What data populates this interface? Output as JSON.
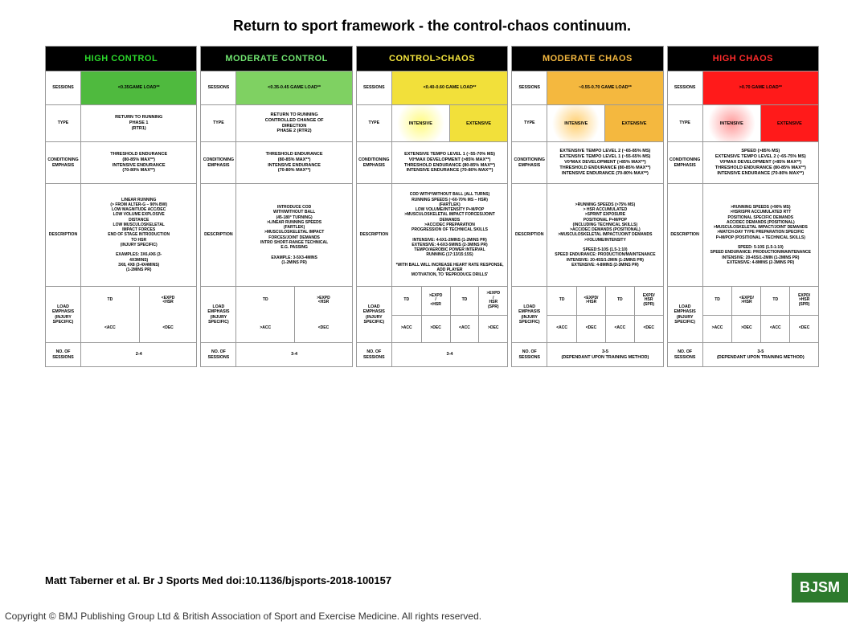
{
  "title": "Return to sport framework - the control-chaos continuum.",
  "citation": "Matt Taberner et al. Br J Sports Med doi:10.1136/bjsports-2018-100157",
  "logo": "BJSM",
  "copyright": "Copyright © BMJ Publishing Group Ltd & British Association of Sport and Exercise Medicine. All rights reserved.",
  "row_labels": {
    "sessions": "SESSIONS",
    "type": "TYPE",
    "conditioning": "CONDITIONING\nEMPHASIS",
    "description": "DESCRIPTION",
    "load": "LOAD\nEMPHASIS\n(INJURY SPECIFIC)",
    "nos": "NO. OF SESSIONS"
  },
  "columns": [
    {
      "title": "HIGH CONTROL",
      "title_color": "#2bd82b",
      "sessions_bg": "#4fba3e",
      "sessions": "<0.35GAME LOAD**",
      "type": "RETURN TO RUNNING\nPHASE 1\n(RTR1)",
      "type_split": false,
      "type_bg": [
        "#ffffff"
      ],
      "conditioning": "THRESHOLD ENDURANCE\n(80-85% MAX**)\nINTENSIVE ENDURANCE\n(70-80% MAX**)",
      "description": "LINEAR RUNNING\n(> FROM ALTER-G – 90% BW)\nLOW MAGNITUDE ACC/DEC\nLOW VOLUME EXPLOSIVE\nDISTANCE\nLOW MUSCULOSKELETAL\nIMPACT FORCES\nEND OF STAGE INTRODUCTION\nTO HSR\n(INJURY SPECIFIC)\n\nEXAMPLES: 3X6,4X6 (3-\n4X3MINS)\n3X8, 4X8 (3-4X4MINS)\n(1-2MINS PR)",
      "load_cols": 2,
      "load": [
        "TD",
        "<EXPD\n<HSR",
        "<ACC",
        "<DEC"
      ],
      "nos": "2-4"
    },
    {
      "title": "MODERATE CONTROL",
      "title_color": "#6fe36f",
      "sessions_bg": "#7fd162",
      "sessions": "<0.35-0.45 GAME LOAD**",
      "type": "RETURN TO RUNNING\nCONTROLLED CHANGE OF\nDIRECTION\nPHASE 2 (RTR2)",
      "type_split": false,
      "type_bg": [
        "#ffffff"
      ],
      "conditioning": "THRESHOLD ENDURANCE\n(80-85% MAX**)\nINTENSIVE ENDURANCE\n(70-80% MAX**)",
      "description": "INTRODUCE COD\nWITH/WITHOUT BALL\n(45-180° TURNING)\n>LINEAR RUNNING SPEEDS\n(FARTLEK)\n>MUSCULOSKELETAL IMPACT\nFORCES/JOINT DEMANDS\nINTRO SHORT-RANGE TECHNICAL\nE.G. PASSING\n\nEXAMPLE: 3-5X3-4MINS\n(1-2MINS PR)",
      "load_cols": 2,
      "load": [
        "TD",
        ">EXPD\n<HSR",
        ">ACC",
        "<DEC"
      ],
      "nos": "3-4"
    },
    {
      "title": "CONTROL>CHAOS",
      "title_color": "#f5e63d",
      "sessions_bg": "#f2e03a",
      "sessions": "<0.40-0.60 GAME LOAD**",
      "type_split": true,
      "type": [
        "INTENSIVE",
        "EXTENSIVE"
      ],
      "type_bg": [
        "radial-gradient(circle,#fffb80 0%,#ffffff 70%)",
        "#f2e03a"
      ],
      "conditioning": "EXTENSIVE TEMPO LEVEL 1 (~55-70% MS)\nV0²MAX DEVELOPMENT (>85% MAX**)\nTHRESHOLD ENDURANCE (80-85% MAX**)\nINTENSIVE ENDURANCE (70-80% MAX**)",
      "description": "COD WITH*/WITHOUT BALL (ALL TURNS)\nRUNNING SPEEDS (~60-70% MS – HSR)\n(FARTLEK)\nLOW VOLUME/INTENSITY P+M/POP\n>MUSCULOSKELETAL IMPACT FORCES/JOINT\nDEMANDS\n>ACC/DEC PREPARATION\nPROGRESSION OF TECHNICAL SKILLS\n\nINTENSIVE: 4-6X1-2MINS (1-2MINS PR)\nEXTENSIVE: 4-6X3-5MINS (2-3MINS PR)\nTEMPO/AEROBIC POWER INTERVAL\nRUNNING (17:13/15:15S)\n\n*WITH BALL WILL INCREASE HEART RATE RESPONSE, ADD PLAYER\nMOTIVATION, TO 'REPRODUCE DRILLS'",
      "load_cols": 4,
      "load": [
        "TD",
        ">EXPD\n/\n<HSR",
        "TD",
        ">EXPD\n/\nHSR\n(SPR)",
        ">ACC",
        ">DEC",
        "<ACC",
        ">DEC"
      ],
      "nos": "3-4"
    },
    {
      "title": "MODERATE CHAOS",
      "title_color": "#f4b83f",
      "sessions_bg": "#f4b83f",
      "sessions": "~0.55-0.70 GAME LOAD**",
      "type_split": true,
      "type": [
        "INTENSIVE",
        "EXTENSIVE"
      ],
      "type_bg": [
        "radial-gradient(circle,#ffcf70 0%,#ffffff 70%)",
        "#f4b83f"
      ],
      "conditioning": "EXTENSIVE TEMPO LEVEL 2 (~65-85% MS)\nEXTENSIVE TEMPO LEVEL 1 (~55-65% MS)\nV0²MAX DEVELOPMENT (>85% MAX**)\nTHRESHOLD ENDURANCE (80-85% MAX**)\nINTENSIVE ENDURANCE (70-80% MAX**)",
      "description": ">RUNNING SPEEDS (>75% MS)\n> HSR ACCUMULATED\n>SPRINT EXPOSURE\nPOSITIONAL P+M/POP\n(INCLUDING TECHNICAL SKILLS)\n>ACC/DEC DEMANDS (POSITIONAL)\n>MUSCULOSKELETAL IMPACT/JOINT DEMANDS\n>VOLUME/INTENSITY\n\nSPEED:5-10S (1.5-1:10)\nSPEED ENDURANCE: PRODUCTION/MAINTENANCE\nINTENSIVE: 20-45S/1-2MIN (1-2MINS PR)\nEXTENSIVE: 4-8MINS (2-3MINS PR)",
      "load_cols": 4,
      "load": [
        "TD",
        "<EXPD/\n>HSR",
        "TD",
        "EXPD/\nHSR\n(SPR)",
        "<ACC",
        "<DEC",
        "<ACC",
        "<DEC"
      ],
      "nos": "3-5\n(DEPENDANT UPON TRAINING METHOD)"
    },
    {
      "title": "HIGH CHAOS",
      "title_color": "#ff2b2b",
      "sessions_bg": "#ff1a1a",
      "sessions": ">0.70 GAME LOAD**",
      "type_split": true,
      "type": [
        "INTENSIVE",
        "EXTENSIVE"
      ],
      "type_bg": [
        "radial-gradient(circle,#ff9a9a 0%,#ffffff 70%)",
        "#ff1a1a"
      ],
      "conditioning": "SPEED (>85% MS)\nEXTENSIVE TEMPO LEVEL 2 (~65-75% MS)\nV0²MAX DEVELOPMENT (>85% MAX**)\nTHRESHOLD ENDURANCE (80-85% MAX**)\nINTENSIVE ENDURANCE (70-80% MAX**)",
      "description": ">RUNNING SPEEDS (>90% MS)\n>HSR/SPR ACCUMULATED RTT\nPOSITIONAL SPECIFIC DEMANDS\nACC/DEC DEMANDS (POSITIONAL)\n>MUSCULOSKELETAL IMPACT/JOINT DEMANDS\n>MATCH-DAY TYPE PREPARATION SPECIFIC\nP+M/POP (POSITIONAL + TECHNICAL SKILLS)\n\nSPEED: 5-10S (1.5-1:10)\nSPEED ENDURANCE: PRODUCTION/MAINTENANCE\nINTENSIVE: 20-45S/1-2MIN (1-2MINS PR)\nEXTENSIVE: 4-8MINS (2-3MINS PR)",
      "load_cols": 4,
      "load": [
        "TD",
        "<EXPD/\n>HSR",
        "TD",
        "EXPD/\n>HSR\n(SPR)",
        ">ACC",
        ">DEC",
        "<ACC",
        "<DEC"
      ],
      "nos": "3-5\n(DEPENDANT UPON TRAINING METHOD)"
    }
  ]
}
